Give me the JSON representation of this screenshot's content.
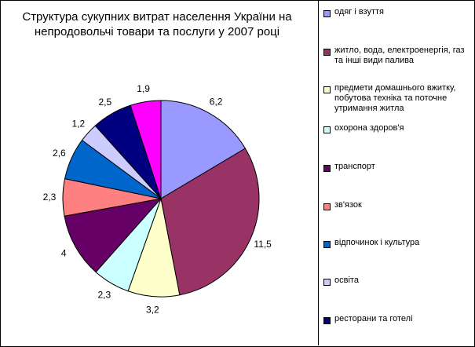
{
  "chart_data": {
    "type": "pie",
    "title": "Структура сукупних витрат населення України  на непродовольчі товари та послуги у 2007 році",
    "legend_position": "right",
    "series": [
      {
        "name": "одяг і взуття",
        "value": 6.2,
        "label": "6,2",
        "color": "#9999ff"
      },
      {
        "name": "житло, вода, електроенергія, газ та інші види палива",
        "value": 11.5,
        "label": "11,5",
        "color": "#993366"
      },
      {
        "name": "предмети домашнього вжитку, побутова техніка та поточне утримання житла",
        "value": 3.2,
        "label": "3,2",
        "color": "#ffffcc"
      },
      {
        "name": "охорона здоров'я",
        "value": 2.3,
        "label": "2,3",
        "color": "#ccffff"
      },
      {
        "name": "транспорт",
        "value": 4,
        "label": "4",
        "color": "#660066"
      },
      {
        "name": "зв'язок",
        "value": 2.3,
        "label": "2,3",
        "color": "#ff8080"
      },
      {
        "name": "відпочинок і культура",
        "value": 2.6,
        "label": "2,6",
        "color": "#0066cc"
      },
      {
        "name": "освіта",
        "value": 1.2,
        "label": "1,2",
        "color": "#ccccff"
      },
      {
        "name": "ресторани та готелі",
        "value": 2.5,
        "label": "2,5",
        "color": "#000080"
      },
      {
        "name": "",
        "value": 1.9,
        "label": "1,9",
        "color": "#ff00ff"
      }
    ]
  }
}
